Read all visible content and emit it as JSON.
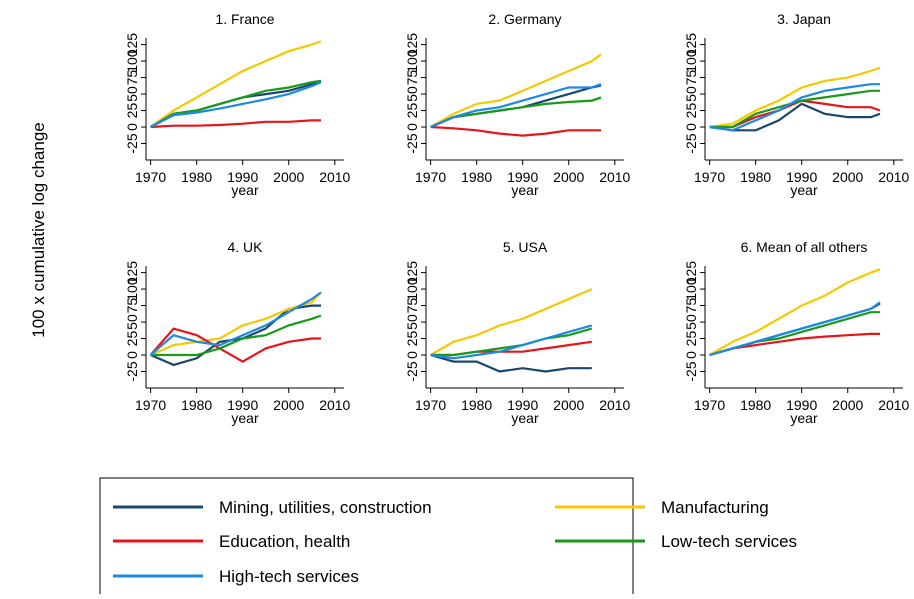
{
  "ylabel": "100 x cumulative log change",
  "chart_data": [
    {
      "type": "line",
      "title": "1. France",
      "xlabel": "year",
      "x": [
        1970,
        1975,
        1980,
        1985,
        1990,
        1995,
        2000,
        2005,
        2007
      ],
      "xlim": [
        1969,
        2012
      ],
      "xticks": [
        1970,
        1980,
        1990,
        2000,
        2010
      ],
      "ylim": [
        -50,
        135
      ],
      "yticks": [
        -25,
        0,
        25,
        50,
        75,
        100,
        125
      ],
      "series": [
        {
          "name": "Mining, utilities, construction",
          "color": "#1a476f",
          "values": [
            0,
            20,
            25,
            35,
            45,
            50,
            55,
            65,
            70
          ]
        },
        {
          "name": "Manufacturing",
          "color": "#f5c800",
          "values": [
            0,
            25,
            45,
            65,
            85,
            100,
            115,
            125,
            130
          ]
        },
        {
          "name": "Education, health",
          "color": "#e8141c",
          "values": [
            0,
            2,
            2,
            3,
            5,
            8,
            8,
            10,
            10
          ]
        },
        {
          "name": "Low-tech services",
          "color": "#1a9a1a",
          "values": [
            0,
            20,
            25,
            35,
            45,
            55,
            60,
            68,
            70
          ]
        },
        {
          "name": "High-tech services",
          "color": "#1e88e5",
          "values": [
            0,
            18,
            22,
            28,
            35,
            42,
            50,
            62,
            68
          ]
        }
      ]
    },
    {
      "type": "line",
      "title": "2. Germany",
      "xlabel": "year",
      "x": [
        1970,
        1975,
        1980,
        1985,
        1990,
        1995,
        2000,
        2005,
        2007
      ],
      "xlim": [
        1969,
        2012
      ],
      "xticks": [
        1970,
        1980,
        1990,
        2000,
        2010
      ],
      "ylim": [
        -50,
        135
      ],
      "yticks": [
        -25,
        0,
        25,
        50,
        75,
        100,
        125
      ],
      "series": [
        {
          "name": "Mining, utilities, construction",
          "color": "#1a476f",
          "values": [
            0,
            15,
            20,
            25,
            30,
            40,
            50,
            60,
            63
          ]
        },
        {
          "name": "Manufacturing",
          "color": "#f5c800",
          "values": [
            0,
            20,
            35,
            40,
            55,
            70,
            85,
            100,
            110
          ]
        },
        {
          "name": "Education, health",
          "color": "#e8141c",
          "values": [
            0,
            -2,
            -5,
            -10,
            -13,
            -10,
            -5,
            -5,
            -5
          ]
        },
        {
          "name": "Low-tech services",
          "color": "#1a9a1a",
          "values": [
            0,
            15,
            20,
            25,
            30,
            35,
            38,
            40,
            45
          ]
        },
        {
          "name": "High-tech services",
          "color": "#1e88e5",
          "values": [
            0,
            15,
            25,
            30,
            40,
            50,
            60,
            60,
            65
          ]
        }
      ]
    },
    {
      "type": "line",
      "title": "3. Japan",
      "xlabel": "year",
      "x": [
        1970,
        1975,
        1980,
        1985,
        1990,
        1995,
        2000,
        2005,
        2007
      ],
      "xlim": [
        1969,
        2012
      ],
      "xticks": [
        1970,
        1980,
        1990,
        2000,
        2010
      ],
      "ylim": [
        -50,
        135
      ],
      "yticks": [
        -25,
        0,
        25,
        50,
        75,
        100,
        125
      ],
      "series": [
        {
          "name": "Mining, utilities, construction",
          "color": "#1a476f",
          "values": [
            0,
            -5,
            -5,
            10,
            35,
            20,
            15,
            15,
            20
          ]
        },
        {
          "name": "Manufacturing",
          "color": "#f5c800",
          "values": [
            0,
            5,
            25,
            40,
            60,
            70,
            75,
            85,
            90
          ]
        },
        {
          "name": "Education, health",
          "color": "#e8141c",
          "values": [
            0,
            0,
            15,
            25,
            40,
            35,
            30,
            30,
            25
          ]
        },
        {
          "name": "Low-tech services",
          "color": "#1a9a1a",
          "values": [
            0,
            0,
            20,
            30,
            40,
            45,
            50,
            55,
            55
          ]
        },
        {
          "name": "High-tech services",
          "color": "#1e88e5",
          "values": [
            0,
            -5,
            10,
            25,
            45,
            55,
            60,
            65,
            65
          ]
        }
      ]
    },
    {
      "type": "line",
      "title": "4. UK",
      "xlabel": "year",
      "x": [
        1970,
        1975,
        1980,
        1985,
        1990,
        1995,
        2000,
        2005,
        2007
      ],
      "xlim": [
        1969,
        2012
      ],
      "xticks": [
        1970,
        1980,
        1990,
        2000,
        2010
      ],
      "ylim": [
        -50,
        135
      ],
      "yticks": [
        -25,
        0,
        25,
        50,
        75,
        100,
        125
      ],
      "series": [
        {
          "name": "Mining, utilities, construction",
          "color": "#1a476f",
          "values": [
            0,
            -15,
            -5,
            20,
            25,
            40,
            70,
            75,
            75
          ]
        },
        {
          "name": "Manufacturing",
          "color": "#f5c800",
          "values": [
            0,
            15,
            20,
            25,
            45,
            55,
            70,
            80,
            95
          ]
        },
        {
          "name": "Education, health",
          "color": "#e8141c",
          "values": [
            0,
            40,
            30,
            10,
            -10,
            10,
            20,
            25,
            25
          ]
        },
        {
          "name": "Low-tech services",
          "color": "#1a9a1a",
          "values": [
            0,
            0,
            0,
            10,
            25,
            30,
            45,
            55,
            60
          ]
        },
        {
          "name": "High-tech services",
          "color": "#1e88e5",
          "values": [
            0,
            30,
            20,
            15,
            30,
            45,
            65,
            85,
            95
          ]
        }
      ]
    },
    {
      "type": "line",
      "title": "5. USA",
      "xlabel": "year",
      "x": [
        1970,
        1975,
        1980,
        1985,
        1990,
        1995,
        2000,
        2005,
        2007
      ],
      "xlim": [
        1969,
        2012
      ],
      "xticks": [
        1970,
        1980,
        1990,
        2000,
        2010
      ],
      "ylim": [
        -50,
        135
      ],
      "yticks": [
        -25,
        0,
        25,
        50,
        75,
        100,
        125
      ],
      "series": [
        {
          "name": "Mining, utilities, construction",
          "color": "#1a476f",
          "values": [
            0,
            -10,
            -10,
            -25,
            -20,
            -25,
            -20,
            -20,
            null
          ]
        },
        {
          "name": "Manufacturing",
          "color": "#f5c800",
          "values": [
            0,
            20,
            30,
            45,
            55,
            70,
            85,
            100,
            null
          ]
        },
        {
          "name": "Education, health",
          "color": "#e8141c",
          "values": [
            0,
            0,
            5,
            5,
            5,
            10,
            15,
            20,
            null
          ]
        },
        {
          "name": "Low-tech services",
          "color": "#1a9a1a",
          "values": [
            0,
            0,
            5,
            10,
            15,
            25,
            30,
            40,
            null
          ]
        },
        {
          "name": "High-tech services",
          "color": "#1e88e5",
          "values": [
            0,
            -5,
            0,
            5,
            15,
            25,
            35,
            45,
            null
          ]
        }
      ]
    },
    {
      "type": "line",
      "title": "6. Mean of all others",
      "xlabel": "year",
      "x": [
        1970,
        1975,
        1980,
        1985,
        1990,
        1995,
        2000,
        2005,
        2007
      ],
      "xlim": [
        1969,
        2012
      ],
      "xticks": [
        1970,
        1980,
        1990,
        2000,
        2010
      ],
      "ylim": [
        -50,
        135
      ],
      "yticks": [
        -25,
        0,
        25,
        50,
        75,
        100,
        125
      ],
      "series": [
        {
          "name": "Mining, utilities, construction",
          "color": "#1a476f",
          "values": [
            0,
            10,
            20,
            30,
            40,
            50,
            60,
            70,
            78
          ]
        },
        {
          "name": "Manufacturing",
          "color": "#f5c800",
          "values": [
            0,
            20,
            35,
            55,
            75,
            90,
            110,
            125,
            130
          ]
        },
        {
          "name": "Education, health",
          "color": "#e8141c",
          "values": [
            0,
            10,
            15,
            20,
            25,
            28,
            30,
            32,
            32
          ]
        },
        {
          "name": "Low-tech services",
          "color": "#1a9a1a",
          "values": [
            0,
            10,
            20,
            25,
            35,
            45,
            55,
            65,
            65
          ]
        },
        {
          "name": "High-tech services",
          "color": "#1e88e5",
          "values": [
            0,
            10,
            20,
            30,
            40,
            50,
            60,
            70,
            80
          ]
        }
      ]
    }
  ]
}
